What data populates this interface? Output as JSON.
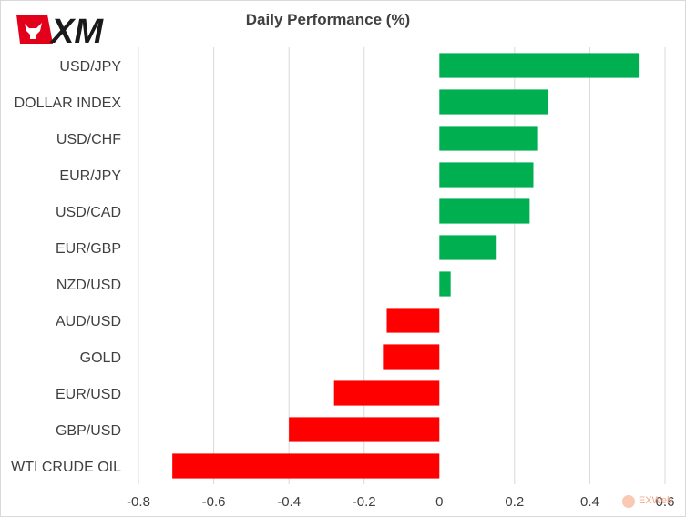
{
  "brand": {
    "logo_text": "XM"
  },
  "watermark": {
    "text": "EXWeb"
  },
  "chart_data": {
    "type": "bar",
    "orientation": "horizontal",
    "title": "Daily Performance (%)",
    "categories": [
      "USD/JPY",
      "DOLLAR INDEX",
      "USD/CHF",
      "EUR/JPY",
      "USD/CAD",
      "EUR/GBP",
      "NZD/USD",
      "AUD/USD",
      "GOLD",
      "EUR/USD",
      "GBP/USD",
      "WTI CRUDE OIL"
    ],
    "values": [
      0.53,
      0.29,
      0.26,
      0.25,
      0.24,
      0.15,
      0.03,
      -0.14,
      -0.15,
      -0.28,
      -0.4,
      -0.71
    ],
    "xlim": [
      -0.8,
      0.6
    ],
    "xticks": [
      -0.8,
      -0.6,
      -0.4,
      -0.2,
      0,
      0.2,
      0.4,
      0.6
    ],
    "xtick_labels": [
      "-0.8",
      "-0.6",
      "-0.4",
      "-0.2",
      "0",
      "0.2",
      "0.4",
      "0.6"
    ],
    "grid": "vertical",
    "colors": {
      "positive": "#00b050",
      "negative": "#ff0000",
      "grid": "#d9d9d9",
      "text": "#404040"
    }
  }
}
